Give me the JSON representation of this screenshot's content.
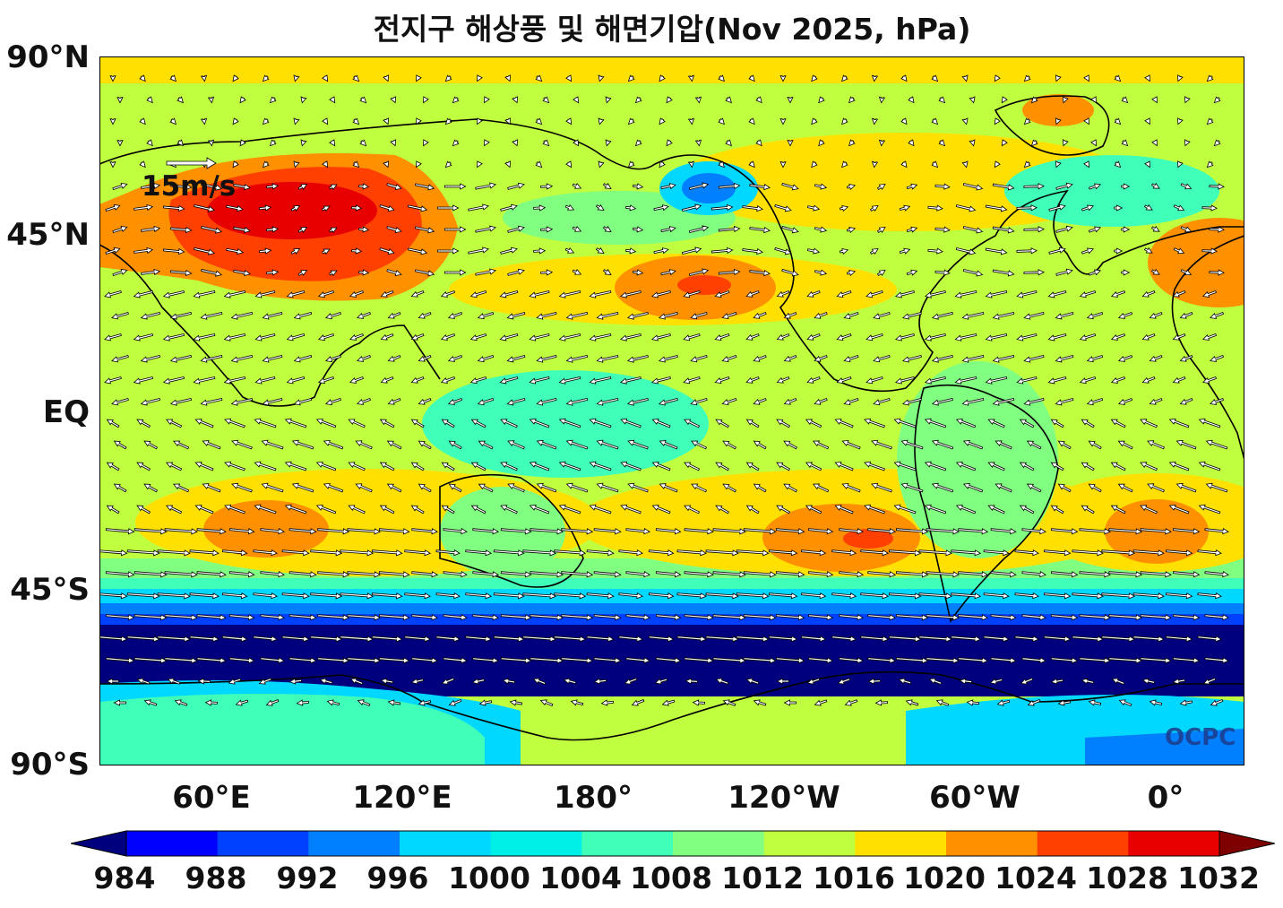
{
  "title": "전지구 해상풍 및 해면기압(Nov 2025, hPa)",
  "lat_labels": [
    "90°N",
    "45°N",
    "EQ",
    "45°S",
    "90°S"
  ],
  "lon_labels": [
    "60°E",
    "120°E",
    "180°",
    "120°W",
    "60°W",
    "0°"
  ],
  "colorbar": {
    "ticks": [
      "984",
      "988",
      "992",
      "996",
      "1000",
      "1004",
      "1008",
      "1012",
      "1016",
      "1020",
      "1024",
      "1028",
      "1032"
    ],
    "colors": [
      "#00007f",
      "#0000ff",
      "#0040ff",
      "#0080ff",
      "#00d8ff",
      "#00f0e8",
      "#40ffb8",
      "#80ff80",
      "#c0ff40",
      "#ffe000",
      "#ff9000",
      "#ff4000",
      "#e80000",
      "#7f0000"
    ],
    "under_color": "#00007f",
    "over_color": "#7f0000"
  },
  "reference_vector": "15m/s",
  "watermark": "OCPC"
}
